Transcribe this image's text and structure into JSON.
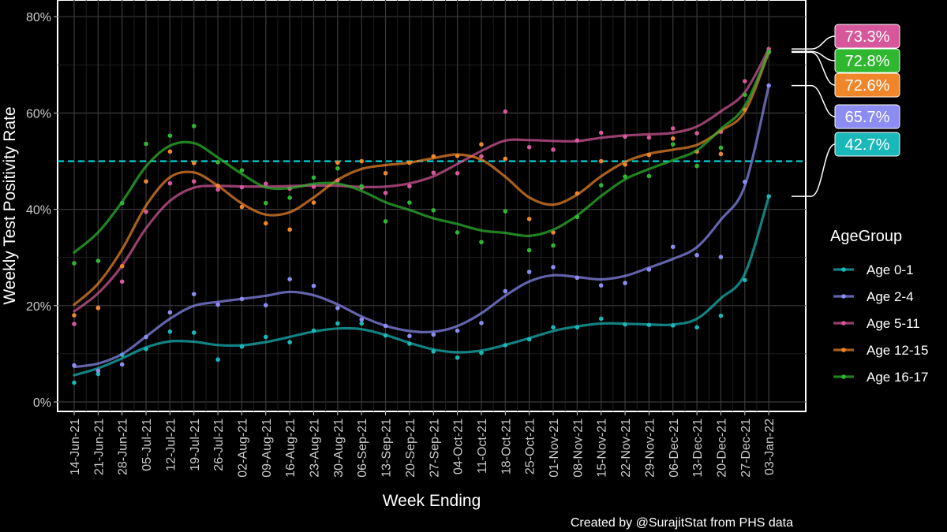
{
  "chart_data": {
    "type": "line",
    "xlabel": "Week Ending",
    "ylabel": "Weekly Test Positivity Rate",
    "ylim": [
      0,
      80
    ],
    "yticks": [
      0,
      20,
      40,
      60,
      80
    ],
    "ytick_labels": [
      "0%",
      "20%",
      "40%",
      "60%",
      "80%"
    ],
    "reference_line": {
      "y": 50,
      "style": "dashed",
      "color": "#00e5ee"
    },
    "categories": [
      "14-Jun-21",
      "21-Jun-21",
      "28-Jun-21",
      "05-Jul-21",
      "12-Jul-21",
      "19-Jul-21",
      "26-Jul-21",
      "02-Aug-21",
      "09-Aug-21",
      "16-Aug-21",
      "23-Aug-21",
      "30-Aug-21",
      "06-Sep-21",
      "13-Sep-21",
      "20-Sep-21",
      "27-Sep-21",
      "04-Oct-21",
      "11-Oct-21",
      "18-Oct-21",
      "25-Oct-21",
      "01-Nov-21",
      "08-Nov-21",
      "15-Nov-21",
      "22-Nov-21",
      "29-Nov-21",
      "06-Dec-21",
      "13-Dec-21",
      "20-Dec-21",
      "27-Dec-21",
      "03-Jan-22"
    ],
    "legend_title": "AgeGroup",
    "legend_position": "right",
    "grid": true,
    "series": [
      {
        "name": "Age 0-1",
        "color": "#1ab8b8",
        "end_label": "42.7%",
        "values": [
          4,
          5.8,
          9.8,
          11,
          14.6,
          14.4,
          8.8,
          11.5,
          13.5,
          12.4,
          14.8,
          16.3,
          16.3,
          13.8,
          12.1,
          10.5,
          9.2,
          10.2,
          11.8,
          13,
          15.5,
          15.5,
          17.3,
          16.1,
          16,
          15.9,
          15.5,
          17.9,
          25.3,
          42.7
        ]
      },
      {
        "name": "Age 2-4",
        "color": "#8c8cf2",
        "end_label": "65.7%",
        "values": [
          7.6,
          6.5,
          7.8,
          13.5,
          18.6,
          22.4,
          20.2,
          21.4,
          20.1,
          25.5,
          24.1,
          19.5,
          17.1,
          15.8,
          13.7,
          14,
          14.8,
          16.4,
          23,
          27,
          28,
          25.8,
          24.2,
          24.7,
          27.5,
          32.2,
          30.5,
          30.1,
          45.7,
          65.7
        ]
      },
      {
        "name": "Age 5-11",
        "color": "#d6589a",
        "end_label": "73.3%",
        "values": [
          16.2,
          19.6,
          25,
          39.5,
          45.4,
          45.8,
          44.1,
          44.6,
          45.3,
          44.3,
          44.7,
          46,
          44.5,
          43.4,
          44.8,
          47.6,
          47.5,
          51,
          60.3,
          52.9,
          52.4,
          54.3,
          55.9,
          55.1,
          54.9,
          56.8,
          55.8,
          56.1,
          66.6,
          73.3
        ]
      },
      {
        "name": "Age 12-15",
        "color": "#f0862a",
        "end_label": "72.6%",
        "values": [
          18,
          19.5,
          28.2,
          45.8,
          52,
          49.6,
          44.9,
          40.5,
          37.1,
          35.8,
          41.4,
          49.7,
          50,
          47.5,
          49.7,
          51,
          51.1,
          53.5,
          50.5,
          38,
          35.2,
          43.3,
          50,
          49.3,
          51.3,
          54.7,
          52,
          51.5,
          60.7,
          72.6
        ]
      },
      {
        "name": "Age 16-17",
        "color": "#2fb82f",
        "end_label": "72.8%",
        "values": [
          28.8,
          29.3,
          41.3,
          53.6,
          55.3,
          57.3,
          49.8,
          48.1,
          41.3,
          42.4,
          46.6,
          48.5,
          44.8,
          37.5,
          41.4,
          39.8,
          35.2,
          33.2,
          39.6,
          31.5,
          32.5,
          38.4,
          45,
          46.8,
          46.9,
          53.5,
          49,
          52.8,
          63.8,
          72.8
        ]
      }
    ]
  },
  "caption": "Created by @SurajitStat from PHS data"
}
